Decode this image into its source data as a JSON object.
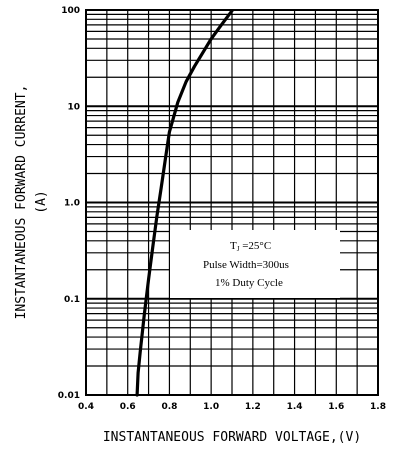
{
  "chart_data": {
    "type": "line",
    "xlabel": "INSTANTANEOUS FORWARD VOLTAGE,(V)",
    "ylabel_lines": [
      "INSTANTANEOUS FORWARD CURRENT,",
      "(A)"
    ],
    "x_scale": "linear",
    "y_scale": "log",
    "xlim": [
      0.4,
      1.8
    ],
    "ylim": [
      0.01,
      100
    ],
    "grid": true,
    "x_ticks": [
      "0.4",
      "0.6",
      "0.8",
      "1.0",
      "1.2",
      "1.4",
      "1.6",
      "1.8"
    ],
    "y_ticks": [
      {
        "value": 0.01,
        "label": "0.01"
      },
      {
        "value": 0.1,
        "label": "0.1"
      },
      {
        "value": 1,
        "label": "1.0"
      },
      {
        "value": 10,
        "label": "10"
      },
      {
        "value": 100,
        "label": "100"
      }
    ],
    "annotation": {
      "tj_symbol": "T",
      "tj_sub": "J",
      "tj_value": " =25°C",
      "pulse": "Pulse Width=300us",
      "duty": "1% Duty Cycle"
    },
    "series": [
      {
        "x": [
          0.645,
          0.65,
          0.66,
          0.68,
          0.7,
          0.72,
          0.74,
          0.76,
          0.78,
          0.8,
          0.84,
          0.88,
          0.92,
          0.96,
          1.0,
          1.04,
          1.08,
          1.1
        ],
        "y": [
          0.01,
          0.017,
          0.028,
          0.07,
          0.16,
          0.34,
          0.72,
          1.4,
          2.8,
          5.4,
          11,
          18,
          26,
          36,
          50,
          66,
          86,
          98
        ]
      }
    ]
  }
}
